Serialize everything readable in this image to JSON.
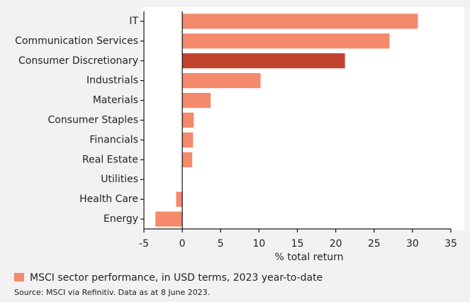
{
  "chart_data": {
    "type": "barh",
    "categories": [
      "IT",
      "Communication Services",
      "Consumer Discretionary",
      "Industrials",
      "Materials",
      "Consumer Staples",
      "Financials",
      "Real Estate",
      "Utilities",
      "Health Care",
      "Energy"
    ],
    "series": [
      {
        "name": "MSCI sector performance, in USD terms, 2023 year-to-date",
        "color": "#f4896b",
        "values": [
          30.7,
          27,
          21.2,
          10.2,
          3.7,
          1.5,
          1.4,
          1.3,
          0,
          -0.8,
          -3.5
        ],
        "colors": [
          "#f4896b",
          "#f4896b",
          "#c0432e",
          "#f4896b",
          "#f4896b",
          "#f4896b",
          "#f4896b",
          "#f4896b",
          "#f4896b",
          "#f4896b",
          "#f4896b"
        ]
      }
    ],
    "xlabel": "% total return",
    "xlim": [
      -5,
      35
    ],
    "xticks": [
      -5,
      0,
      5,
      10,
      15,
      20,
      25,
      30,
      35
    ],
    "source": "Source: MSCI via Refinitiv. Data as at 8 June 2023."
  }
}
